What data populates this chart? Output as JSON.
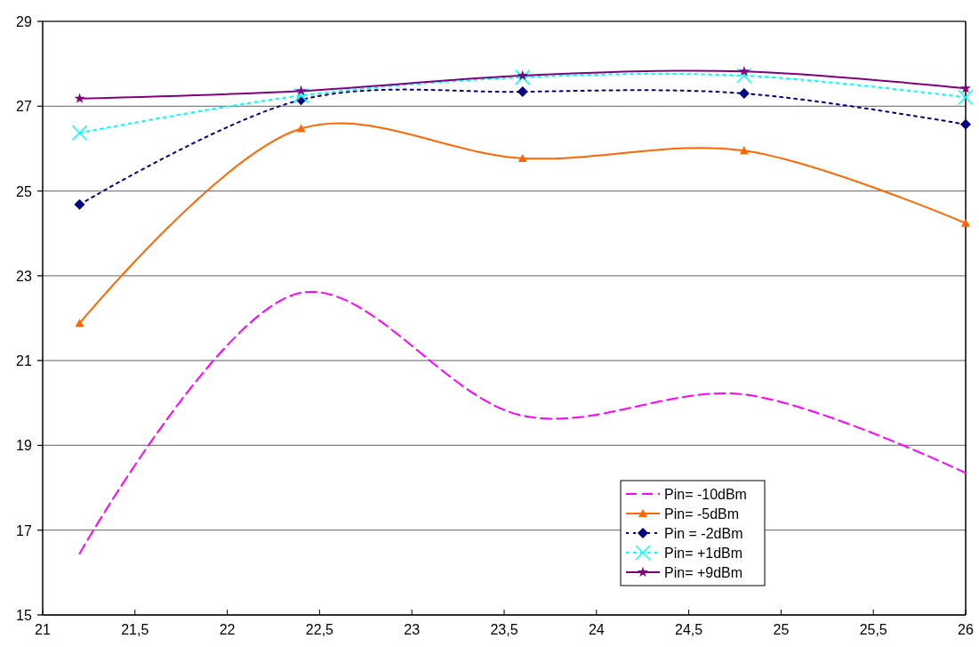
{
  "chart_data": {
    "type": "line",
    "x": [
      21.2,
      22.4,
      23.6,
      24.8,
      26
    ],
    "series": [
      {
        "name": "Pin= -10dBm",
        "color": "#ff00ff",
        "values": [
          16.45,
          22.6,
          19.7,
          20.2,
          18.35
        ],
        "marker": "none",
        "line_style": "dashed"
      },
      {
        "name": "Pin= -5dBm",
        "color": "#ff6600",
        "values": [
          21.88,
          26.47,
          25.77,
          25.95,
          24.24
        ],
        "marker": "triangle",
        "line_style": "solid"
      },
      {
        "name": "Pin = -2dBm",
        "color": "#000080",
        "values": [
          24.68,
          27.15,
          27.34,
          27.3,
          26.57
        ],
        "marker": "diamond",
        "line_style": "dotted"
      },
      {
        "name": "Pin= +1dBm",
        "color": "#00ffff",
        "values": [
          26.37,
          27.25,
          27.68,
          27.72,
          27.21
        ],
        "marker": "cross",
        "line_style": "dotted"
      },
      {
        "name": "Pin= +9dBm",
        "color": "#800080",
        "values": [
          27.18,
          27.36,
          27.72,
          27.82,
          27.42
        ],
        "marker": "star",
        "line_style": "solid"
      }
    ],
    "xlim": [
      21,
      26
    ],
    "xticks": [
      21,
      {
        "value": 21.5,
        "label": "21,5"
      },
      22,
      {
        "value": 22.5,
        "label": "22,5"
      },
      23,
      {
        "value": 23.5,
        "label": "23,5"
      },
      24,
      {
        "value": 24.5,
        "label": "24,5"
      },
      25,
      {
        "value": 25.5,
        "label": "25,5"
      },
      26
    ],
    "ylim": [
      15,
      29
    ],
    "yticks": [
      15,
      17,
      19,
      21,
      23,
      25,
      27,
      29
    ],
    "grid": "y",
    "legend": "bottom right"
  }
}
